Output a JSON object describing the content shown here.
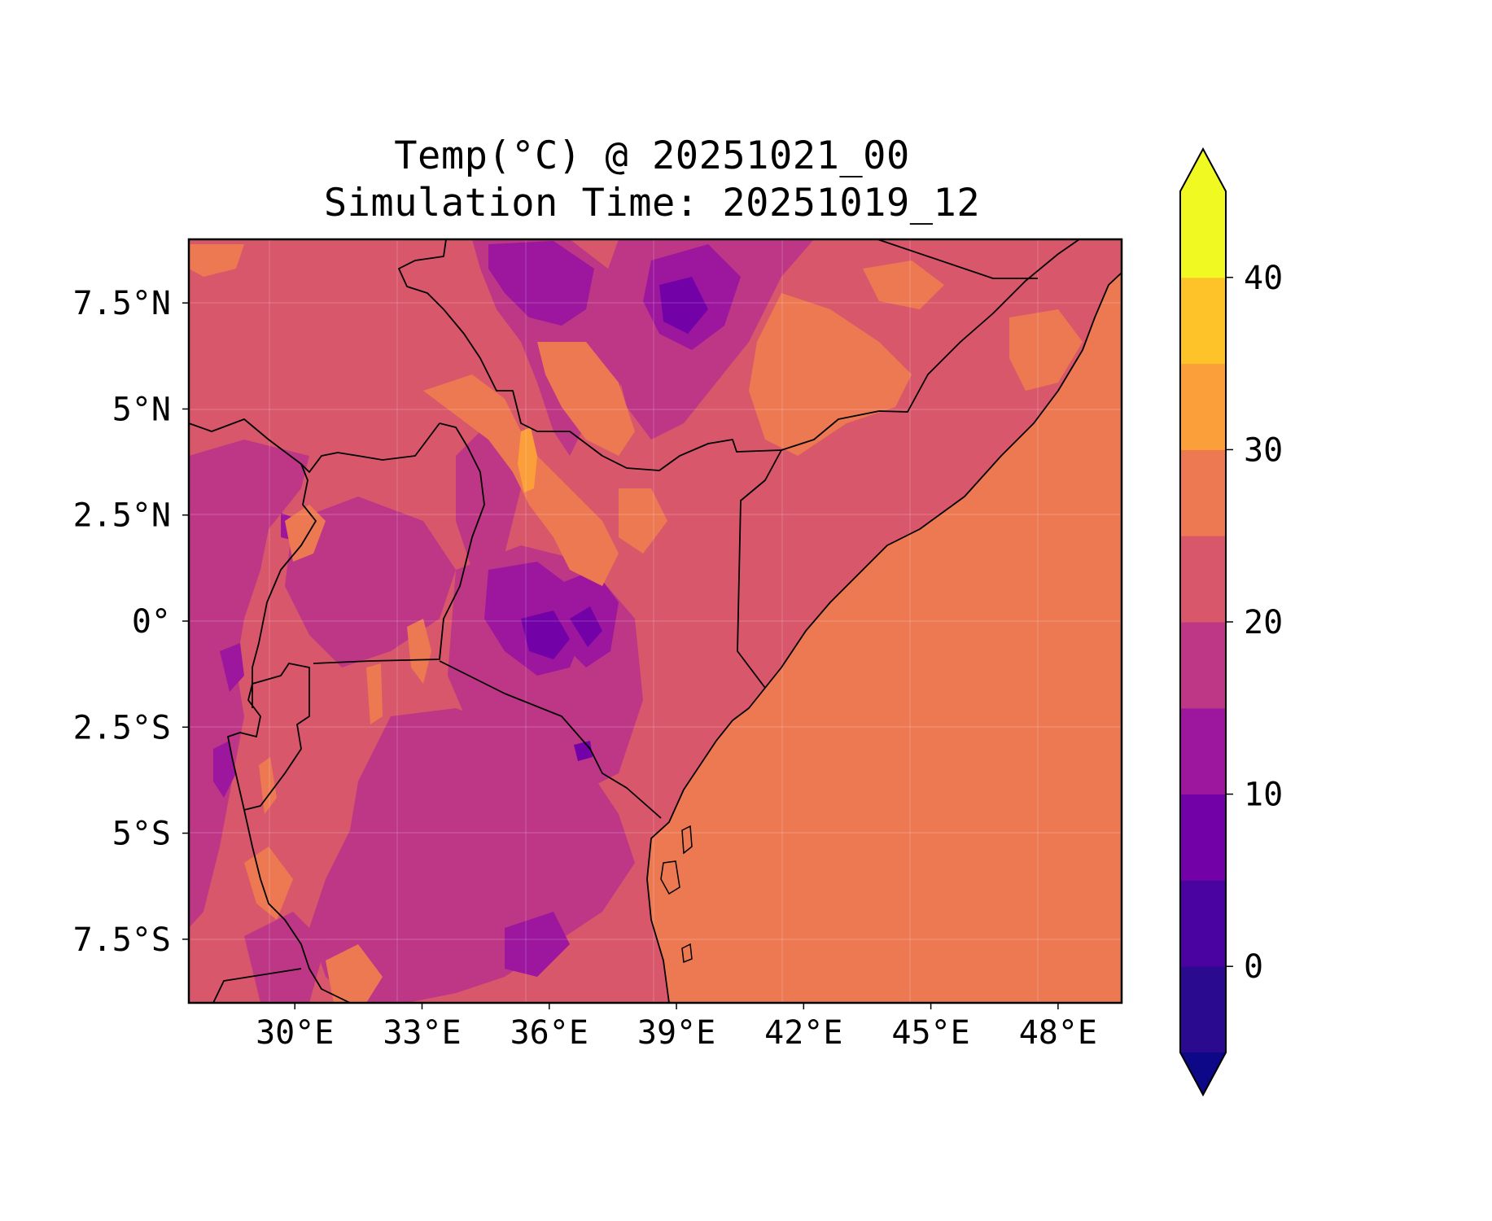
{
  "title": "Temp(°C) @ 20251021_00",
  "subtitle": "Simulation Time: 20251019_12",
  "map": {
    "region": "East Africa",
    "xlim": [
      27.5,
      49.5
    ],
    "ylim": [
      -9,
      9
    ],
    "gridlines": true,
    "x_ticks": [
      {
        "value": 30,
        "label": "30°E"
      },
      {
        "value": 33,
        "label": "33°E"
      },
      {
        "value": 36,
        "label": "36°E"
      },
      {
        "value": 39,
        "label": "39°E"
      },
      {
        "value": 42,
        "label": "42°E"
      },
      {
        "value": 45,
        "label": "45°E"
      },
      {
        "value": 48,
        "label": "48°E"
      }
    ],
    "y_ticks": [
      {
        "value": 7.5,
        "label": "7.5°N"
      },
      {
        "value": 5,
        "label": "5°N"
      },
      {
        "value": 2.5,
        "label": "2.5°N"
      },
      {
        "value": 0,
        "label": "0°"
      },
      {
        "value": -2.5,
        "label": "2.5°S"
      },
      {
        "value": -5,
        "label": "5°S"
      },
      {
        "value": -7.5,
        "label": "7.5°S"
      }
    ],
    "ocean_temperature_band": [
      25,
      30
    ],
    "land_dominant_band": [
      20,
      25
    ]
  },
  "colorbar": {
    "colormap": "plasma",
    "extend": "both",
    "levels": [
      -5,
      0,
      5,
      10,
      15,
      20,
      25,
      30,
      35,
      40,
      45
    ],
    "band_colors": [
      "#2a0a8f",
      "#4a02a0",
      "#7201a8",
      "#9c179e",
      "#bd3786",
      "#d8576b",
      "#ed7953",
      "#fb9f3a",
      "#fdc328",
      "#f0f921"
    ],
    "under_color": "#0d0887",
    "over_color": "#f0f921",
    "ticks": [
      {
        "value": 0,
        "label": "0"
      },
      {
        "value": 10,
        "label": "10"
      },
      {
        "value": 20,
        "label": "20"
      },
      {
        "value": 30,
        "label": "30"
      },
      {
        "value": 40,
        "label": "40"
      }
    ]
  }
}
